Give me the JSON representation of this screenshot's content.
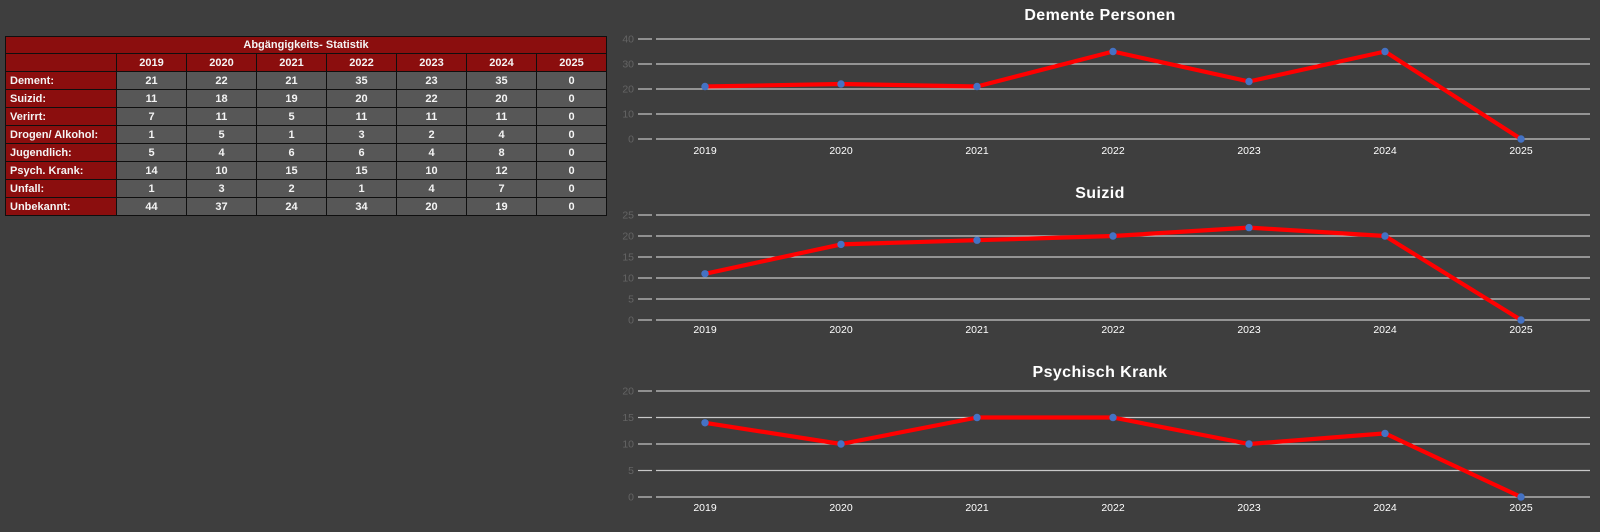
{
  "background": "#3E3E3E",
  "colors": {
    "accent_red": "#8B0E0E",
    "cell_gray": "#575757",
    "border": "#0F0F0F",
    "gridline": "#C8C8C8",
    "line_red": "#FF0000",
    "marker_blue": "#4472C4",
    "ytick_text": "#646464",
    "xtick_text": "#FFFFFF",
    "text": "#F4F4F4"
  },
  "table": {
    "title": "Abgängigkeits- Statistik",
    "years": [
      "2019",
      "2020",
      "2021",
      "2022",
      "2023",
      "2024",
      "2025"
    ],
    "rows": [
      {
        "label": "Dement:",
        "values": [
          21,
          22,
          21,
          35,
          23,
          35,
          0
        ]
      },
      {
        "label": "Suizid:",
        "values": [
          11,
          18,
          19,
          20,
          22,
          20,
          0
        ]
      },
      {
        "label": "Verirrt:",
        "values": [
          7,
          11,
          5,
          11,
          11,
          11,
          0
        ]
      },
      {
        "label": "Drogen/ Alkohol:",
        "values": [
          1,
          5,
          1,
          3,
          2,
          4,
          0
        ]
      },
      {
        "label": "Jugendlich:",
        "values": [
          5,
          4,
          6,
          6,
          4,
          8,
          0
        ]
      },
      {
        "label": "Psych. Krank:",
        "values": [
          14,
          10,
          15,
          15,
          10,
          12,
          0
        ]
      },
      {
        "label": "Unfall:",
        "values": [
          1,
          3,
          2,
          1,
          4,
          7,
          0
        ]
      },
      {
        "label": "Unbekannt:",
        "values": [
          44,
          37,
          24,
          34,
          20,
          19,
          0
        ]
      }
    ]
  },
  "chart_data": [
    {
      "type": "line",
      "title": "Demente Personen",
      "categories": [
        "2019",
        "2020",
        "2021",
        "2022",
        "2023",
        "2024",
        "2025"
      ],
      "values": [
        21,
        22,
        21,
        35,
        23,
        35,
        0
      ],
      "ylim": [
        0,
        40
      ],
      "ytick_step": 10,
      "grid": true,
      "legend": "none",
      "line_color": "#FF0000",
      "marker_color": "#4472C4"
    },
    {
      "type": "line",
      "title": "Suizid",
      "categories": [
        "2019",
        "2020",
        "2021",
        "2022",
        "2023",
        "2024",
        "2025"
      ],
      "values": [
        11,
        18,
        19,
        20,
        22,
        20,
        0
      ],
      "ylim": [
        0,
        25
      ],
      "ytick_step": 5,
      "grid": true,
      "legend": "none",
      "line_color": "#FF0000",
      "marker_color": "#4472C4"
    },
    {
      "type": "line",
      "title": "Psychisch Krank",
      "categories": [
        "2019",
        "2020",
        "2021",
        "2022",
        "2023",
        "2024",
        "2025"
      ],
      "values": [
        14,
        10,
        15,
        15,
        10,
        12,
        0
      ],
      "ylim": [
        0,
        20
      ],
      "ytick_step": 5,
      "grid": true,
      "legend": "none",
      "line_color": "#FF0000",
      "marker_color": "#4472C4"
    }
  ]
}
